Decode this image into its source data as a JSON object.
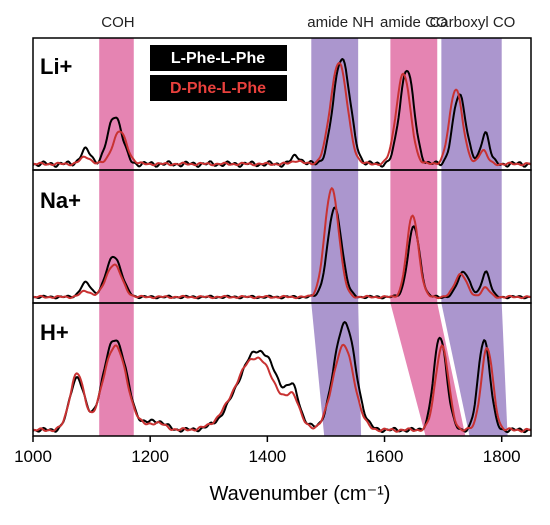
{
  "chart_data": {
    "type": "line",
    "xlabel": "Wavenumber  (cm⁻¹)",
    "xlim": [
      1000,
      1850
    ],
    "x_ticks": [
      1000,
      1200,
      1400,
      1600,
      1800
    ],
    "x_tick_labels": [
      "1000",
      "1200",
      "1400",
      "1600",
      "1800"
    ],
    "grid": false,
    "legend": {
      "placement": "top-left inside Li+ panel",
      "entries": [
        {
          "label": "L-Phe-L-Phe",
          "text_color": "#ffffff",
          "box_color": "#000000"
        },
        {
          "label": "D-Phe-L-Phe",
          "text_color": "#e8403c",
          "box_color": "#000000"
        }
      ]
    },
    "band_labels": [
      {
        "text": "COH",
        "x": 1145
      },
      {
        "text": "amide NH",
        "x": 1525
      },
      {
        "text": "amide CO",
        "x": 1650
      },
      {
        "text": "Carboxyl CO",
        "x": 1750
      }
    ],
    "bands": [
      {
        "panel": 0,
        "kind": "pink",
        "top": [
          1113,
          1172
        ],
        "bottom": [
          1113,
          1172
        ]
      },
      {
        "panel": 0,
        "kind": "purple",
        "top": [
          1475,
          1555
        ],
        "bottom": [
          1475,
          1555
        ]
      },
      {
        "panel": 0,
        "kind": "pink",
        "top": [
          1610,
          1690
        ],
        "bottom": [
          1610,
          1690
        ]
      },
      {
        "panel": 0,
        "kind": "purple",
        "top": [
          1697,
          1800
        ],
        "bottom": [
          1697,
          1800
        ]
      },
      {
        "panel": 1,
        "kind": "pink",
        "top": [
          1113,
          1172
        ],
        "bottom": [
          1113,
          1172
        ]
      },
      {
        "panel": 1,
        "kind": "purple",
        "top": [
          1475,
          1555
        ],
        "bottom": [
          1475,
          1555
        ]
      },
      {
        "panel": 1,
        "kind": "pink",
        "top": [
          1610,
          1690
        ],
        "bottom": [
          1610,
          1690
        ]
      },
      {
        "panel": 1,
        "kind": "purple",
        "top": [
          1697,
          1800
        ],
        "bottom": [
          1697,
          1800
        ]
      },
      {
        "panel": 2,
        "kind": "pink",
        "top": [
          1113,
          1172
        ],
        "bottom": [
          1113,
          1172
        ]
      },
      {
        "panel": 2,
        "kind": "purple",
        "top": [
          1475,
          1555
        ],
        "bottom": [
          1497,
          1560
        ]
      },
      {
        "panel": 2,
        "kind": "pink",
        "top": [
          1610,
          1690
        ],
        "bottom": [
          1670,
          1738
        ]
      },
      {
        "panel": 2,
        "kind": "purple",
        "top": [
          1697,
          1800
        ],
        "bottom": [
          1745,
          1810
        ]
      }
    ],
    "panels": [
      {
        "label": "Li+",
        "series": [
          {
            "color": "#000000",
            "peaks": [
              [
                1090,
                0.12,
                9
              ],
              [
                1140,
                0.42,
                12
              ],
              [
                1450,
                0.07,
                8
              ],
              [
                1527,
                0.92,
                14
              ],
              [
                1638,
                0.82,
                12
              ],
              [
                1728,
                0.6,
                11
              ],
              [
                1772,
                0.28,
                7
              ]
            ],
            "wiggle": 0.025
          },
          {
            "color": "#c83232",
            "peaks": [
              [
                1090,
                0.06,
                9
              ],
              [
                1148,
                0.28,
                12
              ],
              [
                1450,
                0.03,
                8
              ],
              [
                1522,
                0.88,
                14
              ],
              [
                1632,
                0.78,
                12
              ],
              [
                1722,
                0.65,
                11
              ],
              [
                1768,
                0.12,
                7
              ]
            ],
            "wiggle": 0.012
          }
        ]
      },
      {
        "label": "Na+",
        "series": [
          {
            "color": "#000000",
            "peaks": [
              [
                1090,
                0.12,
                9
              ],
              [
                1138,
                0.35,
                13
              ],
              [
                1515,
                0.76,
                12
              ],
              [
                1650,
                0.6,
                10
              ],
              [
                1735,
                0.22,
                10
              ],
              [
                1773,
                0.22,
                7
              ]
            ],
            "wiggle": 0.012
          },
          {
            "color": "#c83232",
            "peaks": [
              [
                1090,
                0.05,
                9
              ],
              [
                1138,
                0.28,
                13
              ],
              [
                1510,
                0.93,
                12
              ],
              [
                1648,
                0.7,
                10
              ],
              [
                1730,
                0.2,
                10
              ],
              [
                1772,
                0.08,
                7
              ]
            ],
            "wiggle": 0.01
          }
        ]
      },
      {
        "label": "H+",
        "series": [
          {
            "color": "#000000",
            "peaks": [
              [
                1075,
                0.45,
                12
              ],
              [
                1140,
                0.78,
                20
              ],
              [
                1210,
                0.08,
                15
              ],
              [
                1385,
                0.68,
                35
              ],
              [
                1445,
                0.22,
                10
              ],
              [
                1532,
                0.92,
                18
              ],
              [
                1695,
                0.8,
                11
              ],
              [
                1770,
                0.78,
                10
              ]
            ],
            "wiggle": 0.02
          },
          {
            "color": "#c83232",
            "peaks": [
              [
                1075,
                0.48,
                12
              ],
              [
                1140,
                0.72,
                20
              ],
              [
                1210,
                0.06,
                15
              ],
              [
                1380,
                0.62,
                35
              ],
              [
                1445,
                0.2,
                10
              ],
              [
                1530,
                0.72,
                18
              ],
              [
                1698,
                0.72,
                11
              ],
              [
                1775,
                0.7,
                10
              ]
            ],
            "wiggle": 0.015
          }
        ]
      }
    ]
  },
  "colors": {
    "pink_band": "#e16fa5",
    "purple_band": "#9c84c6",
    "black_series": "#000000",
    "red_series": "#c83232"
  }
}
